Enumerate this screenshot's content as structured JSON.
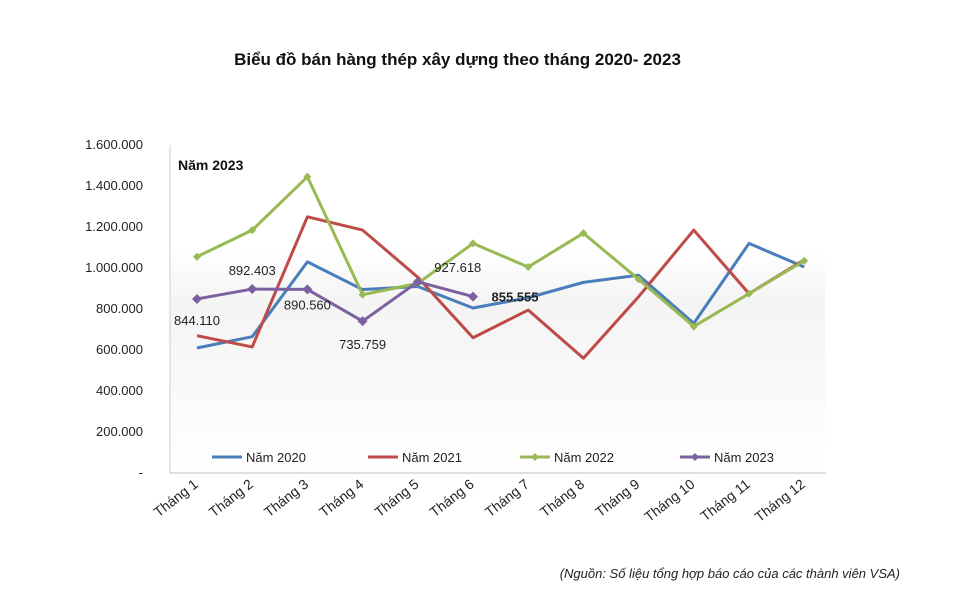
{
  "title": "Biểu đồ bán hàng thép xây dựng theo tháng 2020- 2023",
  "source": "(Nguồn: Số liệu tổng hợp báo cáo của các thành viên VSA)",
  "chart_data": {
    "type": "line",
    "panel_label": "Năm 2023",
    "categories": [
      "Tháng 1",
      "Tháng 2",
      "Tháng 3",
      "Tháng 4",
      "Tháng 5",
      "Tháng 6",
      "Tháng 7",
      "Tháng 8",
      "Tháng 9",
      "Tháng 10",
      "Tháng 11",
      "Tháng 12"
    ],
    "ylim": [
      0,
      1600000
    ],
    "yticks": [
      0,
      200000,
      400000,
      600000,
      800000,
      1000000,
      1200000,
      1400000,
      1600000
    ],
    "ytick_labels": [
      "-",
      "200.000",
      "400.000",
      "600.000",
      "800.000",
      "1.000.000",
      "1.200.000",
      "1.400.000",
      "1.600.000"
    ],
    "grid": false,
    "legend_position": "bottom",
    "series": [
      {
        "name": "Năm 2020",
        "color": "#4a7ebb",
        "marker": "none",
        "values": [
          605000,
          660000,
          1025000,
          890000,
          905000,
          800000,
          850000,
          925000,
          960000,
          725000,
          1115000,
          1000000
        ]
      },
      {
        "name": "Năm 2021",
        "color": "#be4b48",
        "marker": "none",
        "values": [
          665000,
          610000,
          1245000,
          1180000,
          950000,
          655000,
          790000,
          555000,
          855000,
          1180000,
          870000,
          1035000
        ]
      },
      {
        "name": "Năm 2022",
        "color": "#98b954",
        "marker": "diamond",
        "values": [
          1050000,
          1180000,
          1440000,
          865000,
          920000,
          1115000,
          1000000,
          1165000,
          940000,
          710000,
          870000,
          1030000
        ]
      },
      {
        "name": "Năm 2023",
        "color": "#7d60a0",
        "marker": "diamond",
        "values": [
          844110,
          892403,
          890560,
          735759,
          927618,
          855555,
          null,
          null,
          null,
          null,
          null,
          null
        ],
        "data_labels": [
          "844.110",
          "892.403",
          "890.560",
          "735.759",
          "927.618",
          "855.555",
          null,
          null,
          null,
          null,
          null,
          null
        ]
      }
    ]
  }
}
